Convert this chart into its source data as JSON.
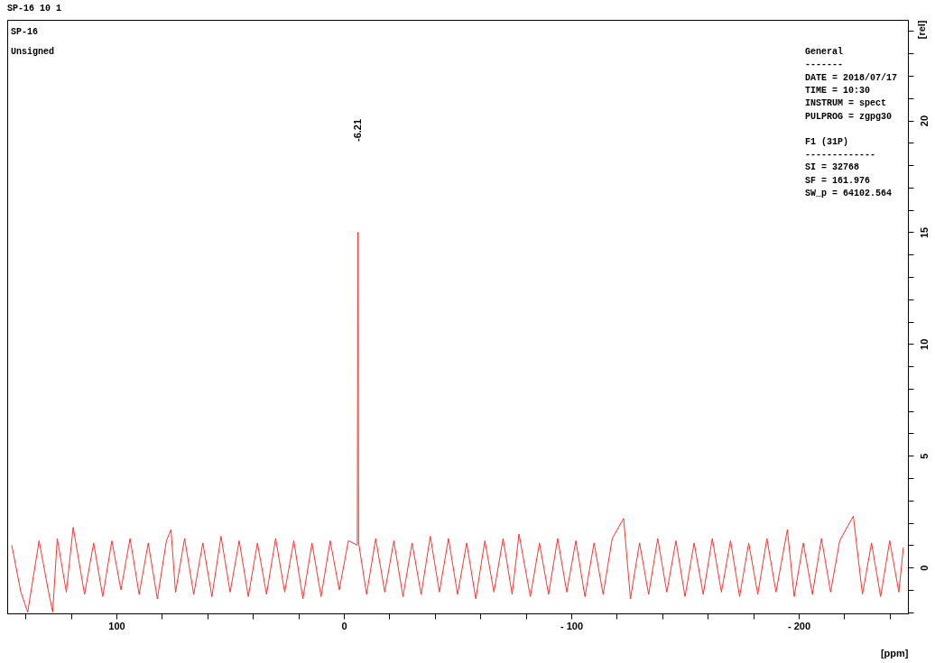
{
  "chart_data": {
    "type": "line",
    "title": "SP-16  10  1",
    "xlabel": "[ppm]",
    "ylabel": "[rel]",
    "annotations": [
      "SP-16",
      "Unsigned",
      "General",
      "-------",
      "DATE = 2018/07/17",
      "TIME = 10:30",
      "INSTRUM = spect",
      "PULPROG = zgpg30",
      "F1 (31P)",
      "-------------",
      "SI =  32768",
      "SF =  161.976",
      "SW_p =  64102.564",
      "-6.21"
    ],
    "xlim": [
      148,
      -248
    ],
    "ylim": [
      -2.05,
      24.5
    ],
    "xticks": [
      {
        "value": 140,
        "label": null
      },
      {
        "value": 120,
        "label": null
      },
      100,
      {
        "value": 80,
        "label": null
      },
      {
        "value": 60,
        "label": null
      },
      {
        "value": 40,
        "label": null
      },
      {
        "value": 20,
        "label": null
      },
      0,
      {
        "value": -20,
        "label": null
      },
      {
        "value": -40,
        "label": null
      },
      {
        "value": -60,
        "label": null
      },
      {
        "value": -80,
        "label": null
      },
      {
        "value": -100,
        "label": "- 100"
      },
      {
        "value": -120,
        "label": null
      },
      {
        "value": -140,
        "label": null
      },
      {
        "value": -160,
        "label": null
      },
      {
        "value": -180,
        "label": null
      },
      {
        "value": -200,
        "label": "- 200"
      },
      {
        "value": -220,
        "label": null
      },
      {
        "value": -240,
        "label": null
      }
    ],
    "yticks": [
      {
        "value": -2,
        "label": null
      },
      {
        "value": -1,
        "label": null
      },
      0,
      {
        "value": 1,
        "label": null
      },
      {
        "value": 2,
        "label": null
      },
      {
        "value": 3,
        "label": null
      },
      {
        "value": 4,
        "label": null
      },
      5,
      {
        "value": 6,
        "label": null
      },
      {
        "value": 7,
        "label": null
      },
      {
        "value": 8,
        "label": null
      },
      {
        "value": 9,
        "label": null
      },
      10,
      {
        "value": 11,
        "label": null
      },
      {
        "value": 12,
        "label": null
      },
      {
        "value": 13,
        "label": null
      },
      {
        "value": 14,
        "label": null
      },
      15,
      {
        "value": 16,
        "label": null
      },
      {
        "value": 17,
        "label": null
      },
      {
        "value": 18,
        "label": null
      },
      {
        "value": 19,
        "label": null
      },
      20,
      {
        "value": 21,
        "label": null
      },
      {
        "value": 22,
        "label": null
      },
      {
        "value": 23,
        "label": null
      },
      {
        "value": 24,
        "label": null
      }
    ],
    "grid": false,
    "legend": false,
    "marker": "none",
    "line_style": "solid",
    "series": [
      {
        "color": "#ff3333",
        "x": [
          146,
          142,
          139,
          134,
          130,
          128,
          126,
          122,
          119,
          114,
          110,
          106,
          102,
          98,
          94,
          90,
          86,
          82,
          78,
          76,
          74,
          70,
          66,
          62,
          58,
          54,
          50,
          46,
          42,
          38,
          34,
          30,
          26,
          22,
          18,
          14,
          10,
          6,
          2,
          -2,
          -5.9,
          -6.21,
          -6.5,
          -10,
          -14,
          -18,
          -22,
          -26,
          -30,
          -34,
          -38,
          -42,
          -46,
          -50,
          -54,
          -58,
          -62,
          -66,
          -70,
          -74,
          -77,
          -82,
          -86,
          -90,
          -94,
          -98,
          -102,
          -106,
          -110,
          -114,
          -118,
          -123,
          -126,
          -130,
          -134,
          -138,
          -142,
          -146,
          -150,
          -154,
          -158,
          -162,
          -166,
          -170,
          -174,
          -178,
          -182,
          -186,
          -190,
          -195,
          -198,
          -202,
          -206,
          -210,
          -214,
          -218,
          -224,
          -228,
          -232,
          -236,
          -240,
          -244,
          -246
        ],
        "values": [
          1.0,
          -1.1,
          -2.0,
          1.2,
          -1.0,
          -2.0,
          1.3,
          -1.1,
          1.8,
          -1.2,
          1.1,
          -1.3,
          1.2,
          -1.0,
          1.3,
          -1.2,
          1.1,
          -1.4,
          1.2,
          1.7,
          -1.1,
          1.3,
          -1.2,
          1.1,
          -1.3,
          1.4,
          -1.1,
          1.2,
          -1.3,
          1.1,
          -1.2,
          1.3,
          -1.1,
          1.2,
          -1.4,
          1.1,
          -1.3,
          1.2,
          -1.0,
          1.2,
          1.0,
          15.0,
          1.1,
          -1.2,
          1.3,
          -1.1,
          1.2,
          -1.3,
          1.1,
          -1.2,
          1.4,
          -1.1,
          1.3,
          -1.2,
          1.1,
          -1.4,
          1.2,
          -1.1,
          1.3,
          -1.2,
          1.5,
          -1.3,
          1.1,
          -1.2,
          1.3,
          -1.1,
          1.2,
          -1.3,
          1.1,
          -1.2,
          1.3,
          2.2,
          -1.4,
          1.1,
          -1.2,
          1.3,
          -1.1,
          1.2,
          -1.3,
          1.1,
          -1.2,
          1.3,
          -1.1,
          1.2,
          -1.3,
          1.1,
          -1.2,
          1.3,
          -1.1,
          1.7,
          -1.3,
          1.1,
          -1.2,
          1.3,
          -1.1,
          1.2,
          2.3,
          -1.2,
          1.1,
          -1.3,
          1.2,
          -1.1,
          0.9
        ]
      }
    ]
  }
}
